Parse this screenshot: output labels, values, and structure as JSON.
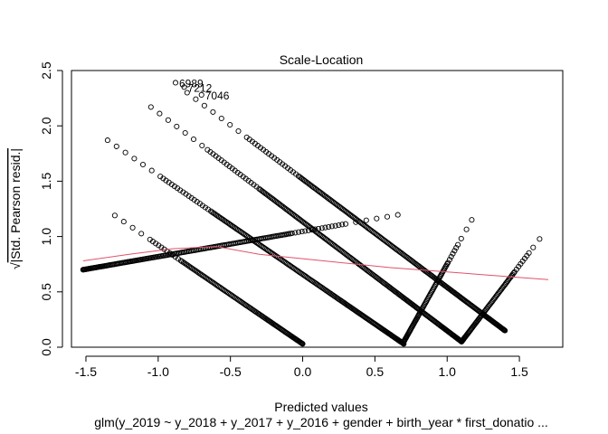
{
  "chart_data": {
    "type": "scatter",
    "title": "Scale-Location",
    "xlabel": "Predicted values",
    "ylabel": "√|Std. Pearson resid.|",
    "ylabel_radical": "√",
    "ylabel_text": "|Std. Pearson resid.|",
    "subtitle": "glm(y_2019 ~ y_2018 + y_2017 + y_2016 + gender + birth_year * first_donatio ...",
    "xlim": [
      -1.6,
      1.8
    ],
    "ylim": [
      0.0,
      2.5
    ],
    "x_ticks": [
      -1.5,
      -1.0,
      -0.5,
      0.0,
      0.5,
      1.0,
      1.5
    ],
    "x_tick_labels": [
      "-1.5",
      "-1.0",
      "-0.5",
      "0.0",
      "0.5",
      "1.0",
      "1.5"
    ],
    "y_ticks": [
      0.0,
      0.5,
      1.0,
      1.5,
      2.0,
      2.5
    ],
    "y_tick_labels": [
      "0.0",
      "0.5",
      "1.0",
      "1.5",
      "2.0",
      "2.5"
    ],
    "point_bands": [
      {
        "name": "rising-band-low",
        "from": [
          -1.52,
          0.7
        ],
        "to": [
          0.72,
          1.21
        ]
      },
      {
        "name": "rising-band-mid",
        "from": [
          0.7,
          0.05
        ],
        "to": [
          1.17,
          1.15
        ]
      },
      {
        "name": "rising-band-high",
        "from": [
          1.1,
          0.05
        ],
        "to": [
          1.67,
          1.03
        ]
      },
      {
        "name": "falling-band-1",
        "from": [
          -1.3,
          1.19
        ],
        "to": [
          0.0,
          0.03
        ]
      },
      {
        "name": "falling-band-2",
        "from": [
          -1.35,
          1.87
        ],
        "to": [
          0.7,
          0.03
        ]
      },
      {
        "name": "falling-band-3",
        "from": [
          -1.05,
          2.17
        ],
        "to": [
          1.1,
          0.05
        ]
      },
      {
        "name": "falling-band-4",
        "from": [
          -0.8,
          2.3
        ],
        "to": [
          1.4,
          0.15
        ]
      }
    ],
    "labeled_points": [
      {
        "label": "6989",
        "x": -0.88,
        "y": 2.39
      },
      {
        "label": "7212",
        "x": -0.82,
        "y": 2.35
      },
      {
        "label": "7046",
        "x": -0.7,
        "y": 2.28
      }
    ],
    "smoother": {
      "color": "#DF536B",
      "x": [
        -1.52,
        -1.2,
        -0.9,
        -0.6,
        -0.3,
        0.0,
        0.3,
        0.6,
        0.9,
        1.2,
        1.5,
        1.7
      ],
      "y": [
        0.78,
        0.84,
        0.89,
        0.91,
        0.84,
        0.8,
        0.76,
        0.72,
        0.69,
        0.66,
        0.63,
        0.61
      ]
    }
  },
  "colors": {
    "points": "#000000",
    "smoother": "#DF536B",
    "background": "#FFFFFF"
  }
}
